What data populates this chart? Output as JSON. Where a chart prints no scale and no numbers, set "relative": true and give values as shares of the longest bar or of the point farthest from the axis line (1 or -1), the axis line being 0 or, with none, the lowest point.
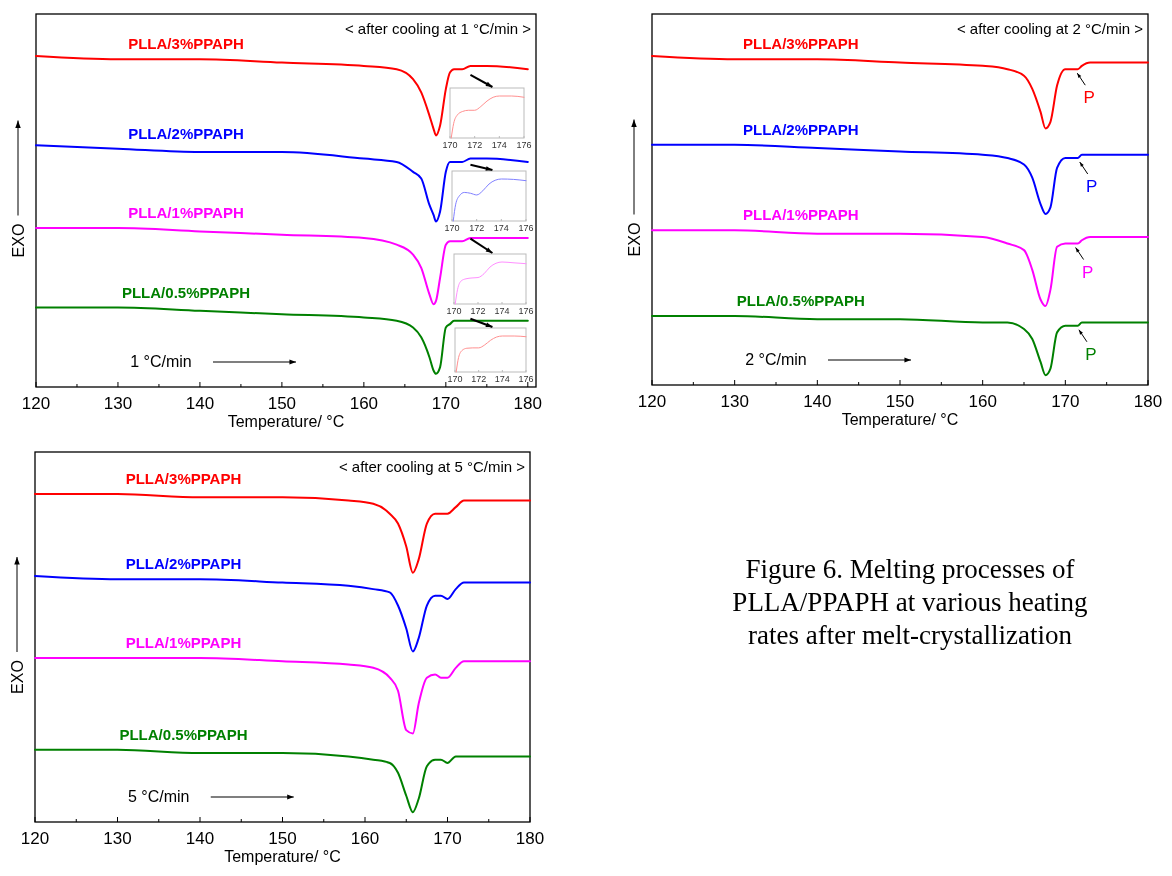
{
  "chart_data": [
    {
      "type": "line",
      "relative": true,
      "xlabel": "Temperature/ °C",
      "ylabel": "EXO",
      "xlim": [
        120,
        181
      ],
      "xticks": [
        120,
        {
          "value": 125,
          "label": null
        },
        130,
        {
          "value": 135,
          "label": null
        },
        140,
        {
          "value": 145,
          "label": null
        },
        150,
        {
          "value": 155,
          "label": null
        },
        160,
        {
          "value": 165,
          "label": null
        },
        170,
        {
          "value": 175,
          "label": null
        },
        180
      ],
      "annotations": [
        "< after cooling at 1 °C/min >",
        "1 °C/min"
      ],
      "x": [
        120,
        130,
        140,
        150,
        160,
        164,
        166,
        167,
        168,
        168.5,
        168.8,
        169.3,
        170,
        170.5,
        171,
        172,
        173,
        175,
        180
      ],
      "series": [
        {
          "name": "PLLA/3%PPAPH",
          "color": "#ff0000",
          "values": [
            1.0,
            0.99,
            0.99,
            0.98,
            0.97,
            0.96,
            0.93,
            0.89,
            0.82,
            0.78,
            0.76,
            0.79,
            0.9,
            0.95,
            0.96,
            0.96,
            0.97,
            0.97,
            0.96
          ]
        },
        {
          "name": "PLLA/2%PPAPH",
          "color": "#0000ff",
          "values": [
            0.73,
            0.72,
            0.71,
            0.71,
            0.69,
            0.68,
            0.65,
            0.63,
            0.55,
            0.52,
            0.5,
            0.53,
            0.65,
            0.68,
            0.68,
            0.68,
            0.69,
            0.69,
            0.68
          ]
        },
        {
          "name": "PLLA/1%PPAPH",
          "color": "#ff00ff",
          "values": [
            0.48,
            0.48,
            0.47,
            0.46,
            0.45,
            0.43,
            0.4,
            0.36,
            0.28,
            0.25,
            0.26,
            0.33,
            0.43,
            0.44,
            0.44,
            0.44,
            0.45,
            0.45,
            0.45
          ]
        },
        {
          "name": "PLLA/0.5%PPAPH",
          "color": "#008000",
          "values": [
            0.24,
            0.24,
            0.23,
            0.22,
            0.21,
            0.2,
            0.18,
            0.15,
            0.09,
            0.05,
            0.04,
            0.06,
            0.18,
            0.19,
            0.2,
            0.2,
            0.2,
            0.2,
            0.2
          ]
        }
      ]
    },
    {
      "type": "line",
      "relative": true,
      "xlabel": "Temperature/ °C",
      "ylabel": "EXO",
      "xlim": [
        120,
        180
      ],
      "xticks": [
        120,
        {
          "value": 125,
          "label": null
        },
        130,
        {
          "value": 135,
          "label": null
        },
        140,
        {
          "value": 145,
          "label": null
        },
        150,
        {
          "value": 155,
          "label": null
        },
        160,
        {
          "value": 165,
          "label": null
        },
        170,
        {
          "value": 175,
          "label": null
        },
        180
      ],
      "annotations": [
        "< after cooling at 2 °C/min >",
        "2 °C/min",
        {
          "text": "P",
          "x": 171.2,
          "y": 0.96
        },
        {
          "text": "P",
          "x": 171.5,
          "y": 0.69
        },
        {
          "text": "P",
          "x": 171.0,
          "y": 0.43
        },
        {
          "text": "P",
          "x": 171.4,
          "y": 0.18
        }
      ],
      "x": [
        120,
        130,
        140,
        150,
        160,
        163,
        165,
        166,
        167,
        167.6,
        168.2,
        169,
        170,
        171,
        171.5,
        172,
        173,
        175,
        180
      ],
      "series": [
        {
          "name": "PLLA/3%PPAPH",
          "color": "#ff0000",
          "values": [
            1.0,
            0.99,
            0.99,
            0.98,
            0.97,
            0.96,
            0.94,
            0.9,
            0.83,
            0.78,
            0.8,
            0.91,
            0.96,
            0.96,
            0.96,
            0.97,
            0.98,
            0.98,
            0.98
          ]
        },
        {
          "name": "PLLA/2%PPAPH",
          "color": "#0000ff",
          "values": [
            0.73,
            0.73,
            0.72,
            0.71,
            0.7,
            0.69,
            0.67,
            0.63,
            0.55,
            0.52,
            0.54,
            0.66,
            0.69,
            0.69,
            0.69,
            0.7,
            0.7,
            0.7,
            0.7
          ]
        },
        {
          "name": "PLLA/1%PPAPH",
          "color": "#ff00ff",
          "values": [
            0.47,
            0.47,
            0.46,
            0.46,
            0.45,
            0.43,
            0.41,
            0.35,
            0.26,
            0.24,
            0.29,
            0.42,
            0.43,
            0.43,
            0.43,
            0.44,
            0.45,
            0.45,
            0.45
          ]
        },
        {
          "name": "PLLA/0.5%PPAPH",
          "color": "#008000",
          "values": [
            0.21,
            0.21,
            0.2,
            0.2,
            0.19,
            0.19,
            0.17,
            0.14,
            0.07,
            0.03,
            0.05,
            0.16,
            0.18,
            0.18,
            0.18,
            0.19,
            0.19,
            0.19,
            0.19
          ]
        }
      ]
    },
    {
      "type": "line",
      "relative": true,
      "xlabel": "Temperature/ °C",
      "ylabel": "EXO",
      "xlim": [
        120,
        180
      ],
      "xticks": [
        120,
        {
          "value": 125,
          "label": null
        },
        130,
        {
          "value": 135,
          "label": null
        },
        140,
        {
          "value": 145,
          "label": null
        },
        150,
        {
          "value": 155,
          "label": null
        },
        160,
        {
          "value": 165,
          "label": null
        },
        170,
        {
          "value": 175,
          "label": null
        },
        180
      ],
      "annotations": [
        "< after cooling at 5 °C/min >",
        "5 °C/min",
        "Figure 6. Melting processes of PLLA/PPAPH at various heating rates after melt-crystallization"
      ],
      "x": [
        120,
        130,
        140,
        150,
        158,
        161,
        163,
        164,
        165,
        165.8,
        166.5,
        167.5,
        168.5,
        169.2,
        170,
        171,
        172,
        175,
        180
      ],
      "series": [
        {
          "name": "PLLA/3%PPAPH",
          "color": "#ff0000",
          "values": [
            1.0,
            1.0,
            0.99,
            0.99,
            0.98,
            0.97,
            0.94,
            0.91,
            0.84,
            0.76,
            0.8,
            0.91,
            0.94,
            0.94,
            0.94,
            0.96,
            0.98,
            0.98,
            0.98
          ]
        },
        {
          "name": "PLLA/2%PPAPH",
          "color": "#0000ff",
          "values": [
            0.75,
            0.74,
            0.74,
            0.73,
            0.72,
            0.71,
            0.7,
            0.66,
            0.59,
            0.52,
            0.56,
            0.66,
            0.69,
            0.69,
            0.68,
            0.71,
            0.73,
            0.73,
            0.73
          ]
        },
        {
          "name": "PLLA/1%PPAPH",
          "color": "#ff00ff",
          "values": [
            0.5,
            0.5,
            0.5,
            0.49,
            0.48,
            0.47,
            0.44,
            0.4,
            0.28,
            0.27,
            0.36,
            0.44,
            0.45,
            0.44,
            0.44,
            0.47,
            0.49,
            0.49,
            0.49
          ]
        },
        {
          "name": "PLLA/0.5%PPAPH",
          "color": "#008000",
          "values": [
            0.22,
            0.22,
            0.21,
            0.21,
            0.2,
            0.19,
            0.18,
            0.15,
            0.08,
            0.03,
            0.07,
            0.17,
            0.19,
            0.19,
            0.18,
            0.2,
            0.2,
            0.2,
            0.2
          ]
        }
      ]
    },
    {
      "type": "line",
      "relative": true,
      "tick_labels": "x",
      "xlim": [
        170,
        176
      ],
      "xticks": [
        170,
        172,
        174,
        176
      ],
      "x": [
        170.1,
        170.3,
        170.6,
        171,
        171.5,
        172,
        172.5,
        173,
        173.5,
        174,
        175,
        176
      ],
      "series": [
        {
          "color": "#ff9090",
          "values": [
            0,
            0.35,
            0.55,
            0.63,
            0.66,
            0.66,
            0.75,
            0.88,
            0.97,
            1.0,
            1.0,
            0.97
          ]
        }
      ]
    },
    {
      "type": "line",
      "relative": true,
      "tick_labels": "x",
      "xlim": [
        170,
        176
      ],
      "xticks": [
        170,
        172,
        174,
        176
      ],
      "x": [
        170.1,
        170.3,
        170.6,
        171,
        171.5,
        172,
        172.5,
        173,
        173.5,
        174,
        175,
        176
      ],
      "series": [
        {
          "color": "#8080ff",
          "values": [
            0,
            0.4,
            0.6,
            0.68,
            0.66,
            0.62,
            0.72,
            0.88,
            0.97,
            1.0,
            0.99,
            0.96
          ]
        }
      ]
    },
    {
      "type": "line",
      "relative": true,
      "tick_labels": "x",
      "xlim": [
        170,
        176
      ],
      "xticks": [
        170,
        172,
        174,
        176
      ],
      "x": [
        170.1,
        170.3,
        170.6,
        171,
        171.5,
        172,
        172.5,
        173,
        173.5,
        174,
        175,
        176
      ],
      "series": [
        {
          "color": "#ff90ff",
          "values": [
            0,
            0.35,
            0.55,
            0.6,
            0.62,
            0.63,
            0.72,
            0.88,
            0.97,
            1.0,
            0.98,
            0.96
          ]
        }
      ]
    },
    {
      "type": "line",
      "relative": true,
      "tick_labels": "x",
      "xlim": [
        170,
        176
      ],
      "xticks": [
        170,
        172,
        174,
        176
      ],
      "x": [
        170.1,
        170.3,
        170.6,
        171,
        171.5,
        172,
        172.5,
        173,
        173.5,
        174,
        175,
        176
      ],
      "series": [
        {
          "color": "#ff9090",
          "values": [
            0,
            0.4,
            0.6,
            0.66,
            0.67,
            0.67,
            0.75,
            0.88,
            0.97,
            1.0,
            1.0,
            0.98
          ]
        }
      ]
    }
  ]
}
